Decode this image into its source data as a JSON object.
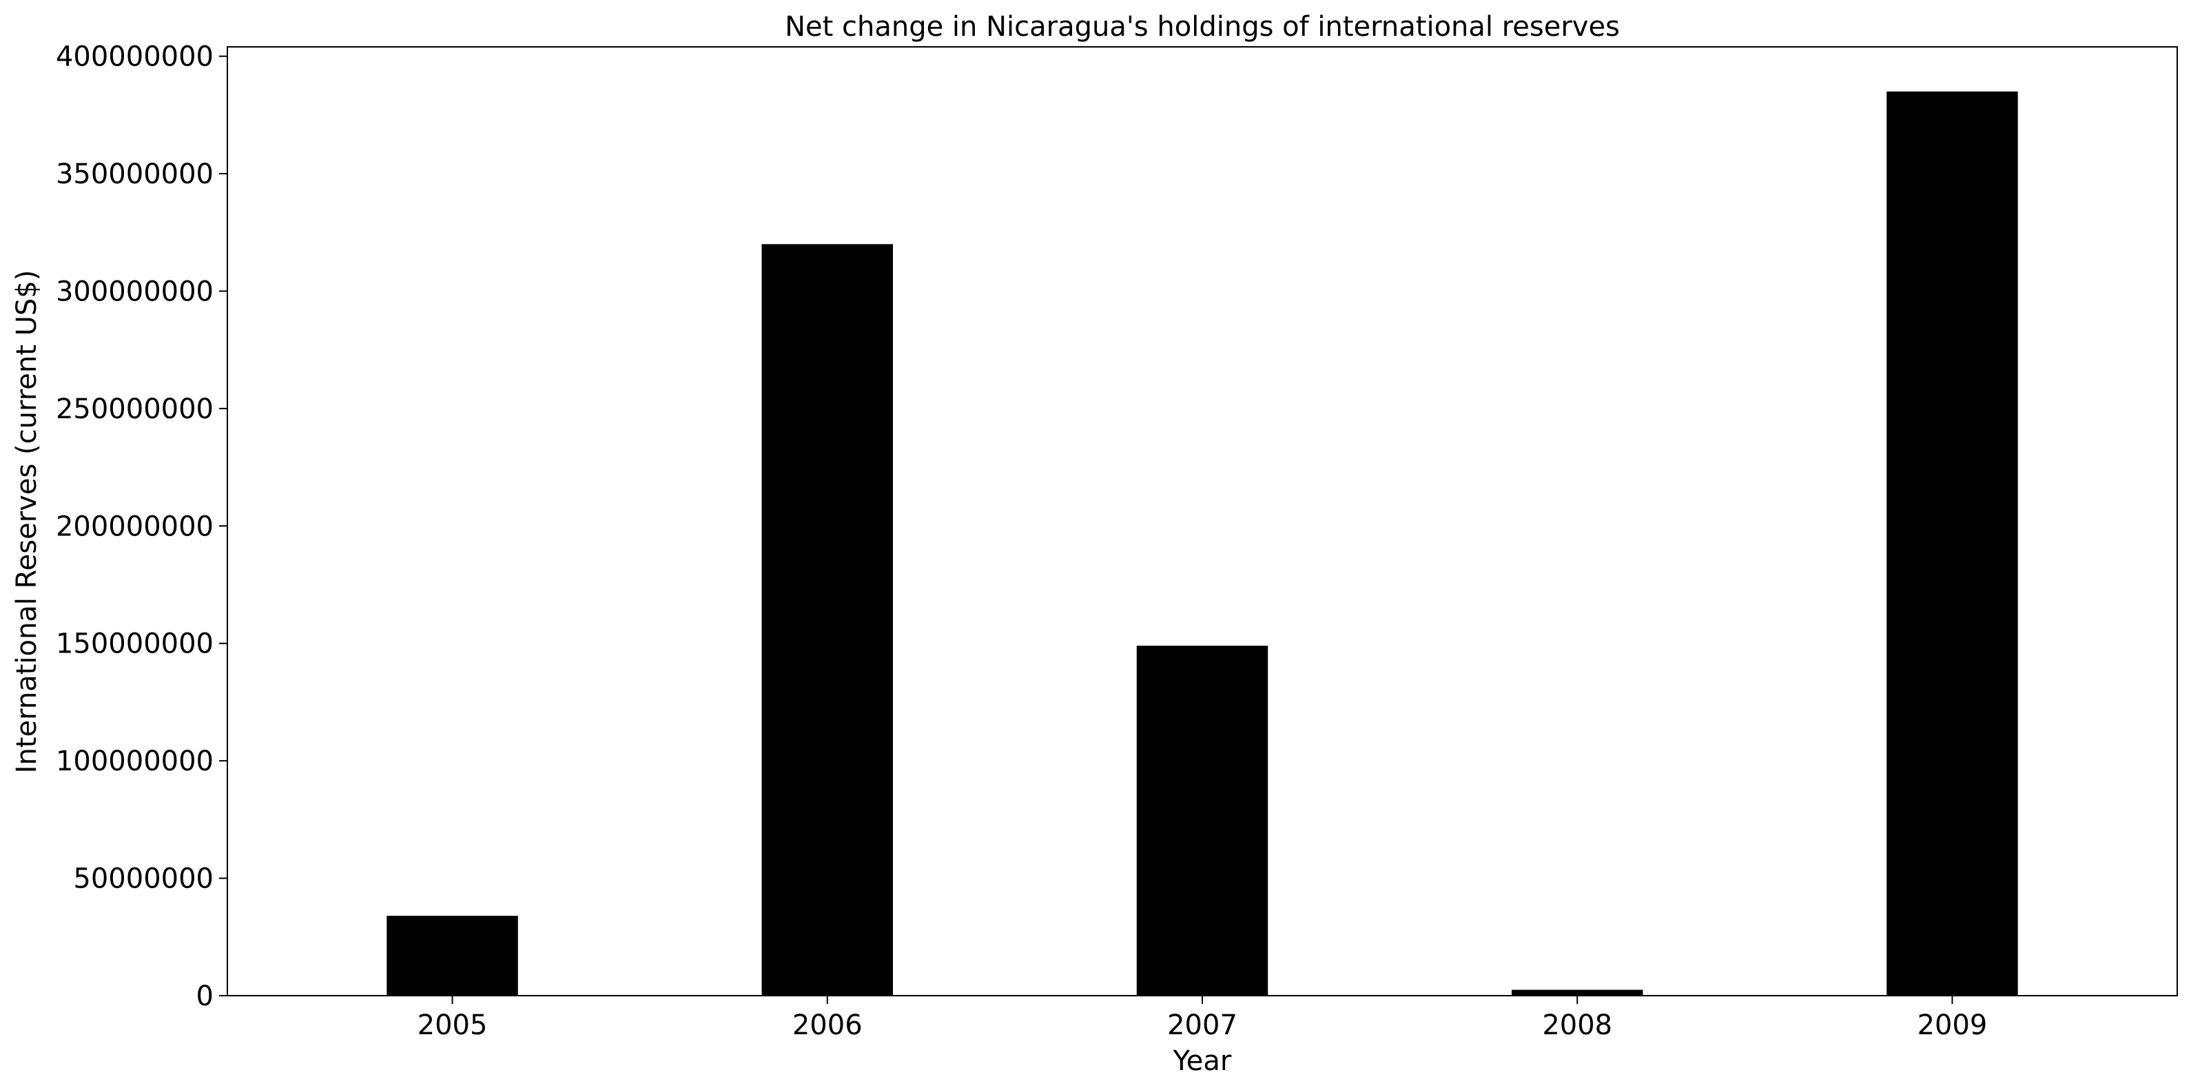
{
  "chart_data": {
    "type": "bar",
    "title": "Net change in Nicaragua's holdings of international reserves",
    "xlabel": "Year",
    "ylabel": "International Reserves (current US$)",
    "categories": [
      "2005",
      "2006",
      "2007",
      "2008",
      "2009"
    ],
    "values": [
      34000000,
      320000000,
      149000000,
      2500000,
      385000000
    ],
    "ylim": [
      0,
      404000000
    ],
    "yticks": [
      0,
      50000000,
      100000000,
      150000000,
      200000000,
      250000000,
      300000000,
      350000000,
      400000000
    ],
    "ytick_labels": [
      "0",
      "50000000",
      "100000000",
      "150000000",
      "200000000",
      "250000000",
      "300000000",
      "350000000",
      "400000000"
    ],
    "bar_color": "#000000",
    "grid": false,
    "legend": "none"
  }
}
